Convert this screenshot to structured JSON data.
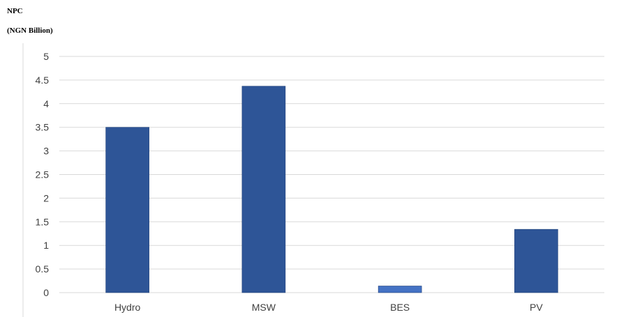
{
  "chart_data": {
    "type": "bar",
    "ylabel_line1": "NPC",
    "ylabel_line2": "(NGN Billion)",
    "xlabel": "",
    "categories": [
      "Hydro",
      "MSW",
      "BES",
      "PV"
    ],
    "values": [
      3.5,
      4.37,
      0.14,
      1.34
    ],
    "yticks": [
      "0",
      "0.5",
      "1",
      "1.5",
      "2",
      "2.5",
      "3",
      "3.5",
      "4",
      "4.5",
      "5"
    ],
    "ylim": [
      0,
      5
    ],
    "grid": true,
    "legend": "none",
    "bar_colors": [
      "#2e5597",
      "#2e5597",
      "#4472c4",
      "#2e5597"
    ],
    "grid_color": "#d9d9d9"
  }
}
